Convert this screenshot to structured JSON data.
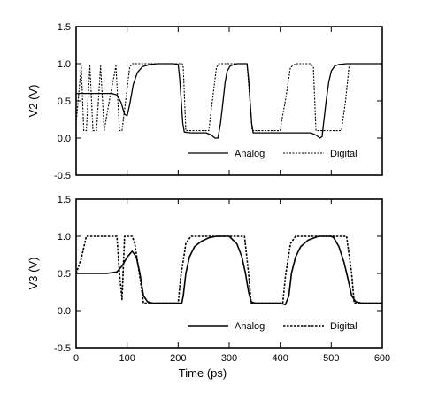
{
  "chart_data": [
    {
      "type": "line",
      "title": "",
      "xlabel": "",
      "ylabel": "V2 (V)",
      "xlim": [
        0,
        600
      ],
      "ylim": [
        -0.5,
        1.5
      ],
      "x_ticks": [
        0,
        100,
        200,
        300,
        400,
        500,
        600
      ],
      "y_ticks": [
        -0.5,
        0.0,
        0.5,
        1.0,
        1.5
      ],
      "y_tick_labels": [
        "-0.5",
        "0.0",
        "0.5",
        "1.0",
        "1.5"
      ],
      "show_x_tick_labels": false,
      "legend_position": "bottom-right",
      "series": [
        {
          "name": "Analog",
          "style": "solid",
          "points": [
            [
              0,
              0.6
            ],
            [
              20,
              0.6
            ],
            [
              40,
              0.6
            ],
            [
              70,
              0.6
            ],
            [
              80,
              0.58
            ],
            [
              88,
              0.48
            ],
            [
              95,
              0.32
            ],
            [
              100,
              0.3
            ],
            [
              105,
              0.45
            ],
            [
              112,
              0.72
            ],
            [
              120,
              0.88
            ],
            [
              130,
              0.96
            ],
            [
              145,
              0.99
            ],
            [
              160,
              1.0
            ],
            [
              190,
              1.0
            ],
            [
              200,
              0.99
            ],
            [
              203,
              0.8
            ],
            [
              206,
              0.5
            ],
            [
              209,
              0.2
            ],
            [
              212,
              0.08
            ],
            [
              225,
              0.07
            ],
            [
              240,
              0.07
            ],
            [
              255,
              0.07
            ],
            [
              265,
              0.04
            ],
            [
              272,
              0.0
            ],
            [
              278,
              0.0
            ],
            [
              283,
              0.2
            ],
            [
              288,
              0.5
            ],
            [
              292,
              0.75
            ],
            [
              296,
              0.9
            ],
            [
              302,
              0.97
            ],
            [
              315,
              1.0
            ],
            [
              335,
              1.0
            ],
            [
              338,
              0.8
            ],
            [
              341,
              0.5
            ],
            [
              344,
              0.2
            ],
            [
              347,
              0.07
            ],
            [
              360,
              0.07
            ],
            [
              380,
              0.07
            ],
            [
              410,
              0.07
            ],
            [
              440,
              0.07
            ],
            [
              460,
              0.07
            ],
            [
              470,
              0.04
            ],
            [
              478,
              0.0
            ],
            [
              482,
              0.02
            ],
            [
              485,
              0.2
            ],
            [
              490,
              0.5
            ],
            [
              495,
              0.75
            ],
            [
              500,
              0.9
            ],
            [
              507,
              0.97
            ],
            [
              515,
              0.99
            ],
            [
              530,
              1.0
            ],
            [
              600,
              1.0
            ]
          ]
        },
        {
          "name": "Digital",
          "style": "dotted",
          "points": [
            [
              0,
              0.2
            ],
            [
              10,
              0.97
            ],
            [
              15,
              0.1
            ],
            [
              20,
              0.1
            ],
            [
              27,
              0.97
            ],
            [
              33,
              0.1
            ],
            [
              40,
              0.1
            ],
            [
              48,
              0.97
            ],
            [
              55,
              0.1
            ],
            [
              65,
              0.5
            ],
            [
              78,
              0.97
            ],
            [
              85,
              0.1
            ],
            [
              90,
              0.1
            ],
            [
              105,
              0.95
            ],
            [
              110,
              1.0
            ],
            [
              150,
              1.0
            ],
            [
              208,
              1.0
            ],
            [
              210,
              0.95
            ],
            [
              215,
              0.1
            ],
            [
              260,
              0.1
            ],
            [
              267,
              0.5
            ],
            [
              275,
              0.95
            ],
            [
              280,
              1.0
            ],
            [
              335,
              1.0
            ],
            [
              345,
              0.1
            ],
            [
              400,
              0.1
            ],
            [
              402,
              0.2
            ],
            [
              410,
              0.5
            ],
            [
              420,
              0.95
            ],
            [
              430,
              1.0
            ],
            [
              460,
              1.0
            ],
            [
              465,
              0.95
            ],
            [
              470,
              0.1
            ],
            [
              520,
              0.1
            ],
            [
              528,
              0.5
            ],
            [
              535,
              0.97
            ],
            [
              540,
              1.0
            ],
            [
              600,
              1.0
            ]
          ]
        }
      ]
    },
    {
      "type": "line",
      "title": "",
      "xlabel": "Time (ps)",
      "ylabel": "V3 (V)",
      "xlim": [
        0,
        600
      ],
      "ylim": [
        -0.5,
        1.5
      ],
      "x_ticks": [
        0,
        100,
        200,
        300,
        400,
        500,
        600
      ],
      "x_tick_labels": [
        "0",
        "100",
        "200",
        "300",
        "400",
        "500",
        "600"
      ],
      "y_ticks": [
        -0.5,
        0.0,
        0.5,
        1.0,
        1.5
      ],
      "y_tick_labels": [
        "-0.5",
        "0.0",
        "0.5",
        "1.0",
        "1.5"
      ],
      "show_x_tick_labels": true,
      "legend_position": "bottom-right",
      "series": [
        {
          "name": "Analog",
          "style": "solid",
          "points": [
            [
              0,
              0.5
            ],
            [
              20,
              0.5
            ],
            [
              60,
              0.5
            ],
            [
              80,
              0.52
            ],
            [
              90,
              0.6
            ],
            [
              100,
              0.72
            ],
            [
              110,
              0.8
            ],
            [
              118,
              0.72
            ],
            [
              125,
              0.5
            ],
            [
              132,
              0.2
            ],
            [
              140,
              0.12
            ],
            [
              150,
              0.1
            ],
            [
              175,
              0.1
            ],
            [
              200,
              0.1
            ],
            [
              207,
              0.1
            ],
            [
              210,
              0.2
            ],
            [
              215,
              0.5
            ],
            [
              222,
              0.72
            ],
            [
              232,
              0.86
            ],
            [
              245,
              0.93
            ],
            [
              260,
              0.98
            ],
            [
              275,
              1.0
            ],
            [
              300,
              1.0
            ],
            [
              315,
              0.9
            ],
            [
              325,
              0.72
            ],
            [
              332,
              0.5
            ],
            [
              338,
              0.25
            ],
            [
              343,
              0.12
            ],
            [
              350,
              0.1
            ],
            [
              370,
              0.1
            ],
            [
              400,
              0.1
            ],
            [
              410,
              0.08
            ],
            [
              417,
              0.2
            ],
            [
              422,
              0.5
            ],
            [
              430,
              0.72
            ],
            [
              440,
              0.86
            ],
            [
              455,
              0.95
            ],
            [
              475,
              1.0
            ],
            [
              500,
              1.0
            ],
            [
              505,
              0.98
            ],
            [
              515,
              0.86
            ],
            [
              525,
              0.65
            ],
            [
              532,
              0.45
            ],
            [
              540,
              0.2
            ],
            [
              548,
              0.12
            ],
            [
              560,
              0.1
            ],
            [
              600,
              0.1
            ]
          ]
        },
        {
          "name": "Digital",
          "style": "dotted",
          "points": [
            [
              0,
              0.5
            ],
            [
              10,
              0.7
            ],
            [
              20,
              1.0
            ],
            [
              80,
              1.0
            ],
            [
              85,
              0.5
            ],
            [
              90,
              0.15
            ],
            [
              95,
              1.0
            ],
            [
              110,
              1.0
            ],
            [
              115,
              0.9
            ],
            [
              125,
              0.45
            ],
            [
              132,
              0.1
            ],
            [
              140,
              0.1
            ],
            [
              200,
              0.1
            ],
            [
              205,
              0.45
            ],
            [
              215,
              0.9
            ],
            [
              225,
              1.0
            ],
            [
              330,
              1.0
            ],
            [
              338,
              0.5
            ],
            [
              343,
              0.1
            ],
            [
              360,
              0.1
            ],
            [
              405,
              0.1
            ],
            [
              410,
              0.45
            ],
            [
              420,
              0.9
            ],
            [
              430,
              1.0
            ],
            [
              530,
              1.0
            ],
            [
              540,
              0.5
            ],
            [
              545,
              0.1
            ],
            [
              600,
              0.1
            ]
          ]
        }
      ]
    }
  ]
}
